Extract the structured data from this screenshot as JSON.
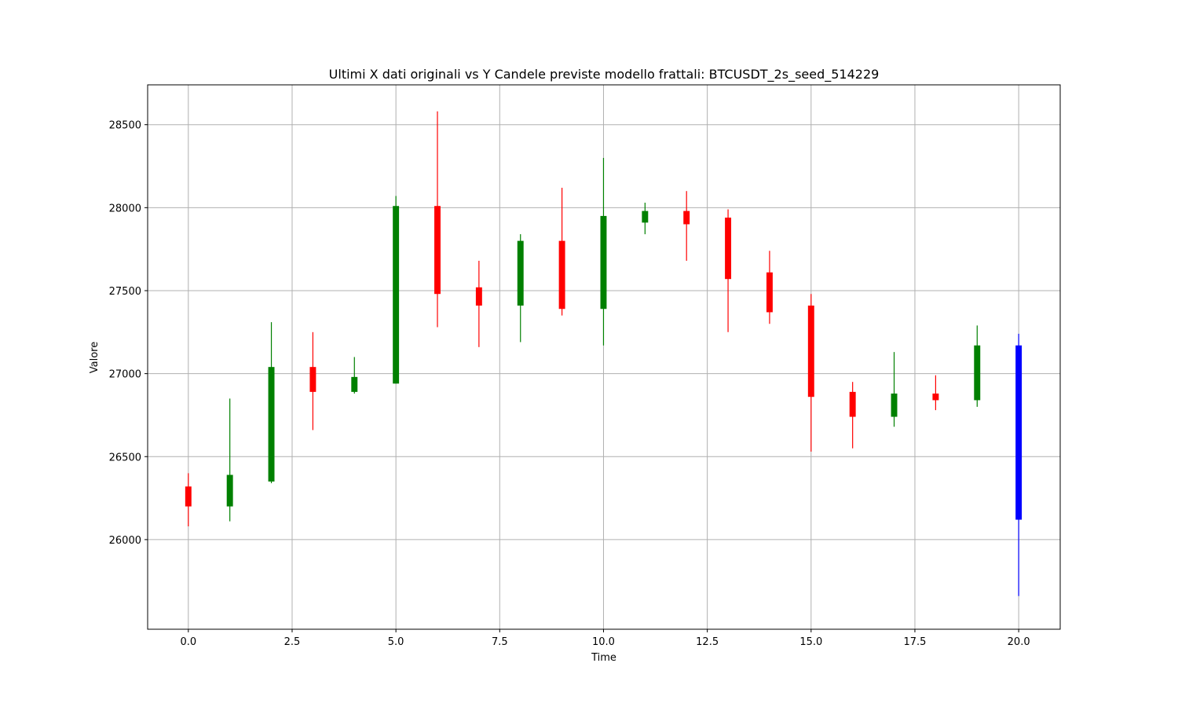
{
  "chart_data": {
    "type": "candlestick",
    "title": "Ultimi X dati originali vs Y Candele previste modello frattali: BTCUSDT_2s_seed_514229",
    "xlabel": "Time",
    "ylabel": "Valore",
    "xlim": [
      -0.98,
      21.0
    ],
    "ylim": [
      25460,
      28740
    ],
    "x_ticks": [
      0.0,
      2.5,
      5.0,
      7.5,
      10.0,
      12.5,
      15.0,
      17.5,
      20.0
    ],
    "x_tick_labels": [
      "0.0",
      "2.5",
      "5.0",
      "7.5",
      "10.0",
      "12.5",
      "15.0",
      "17.5",
      "20.0"
    ],
    "y_ticks": [
      26000,
      26500,
      27000,
      27500,
      28000,
      28500
    ],
    "y_tick_labels": [
      "26000",
      "26500",
      "27000",
      "27500",
      "28000",
      "28500"
    ],
    "grid": true,
    "colors": {
      "up": "#008000",
      "down": "#ff0000",
      "forecast": "#0000ff"
    },
    "candles": [
      {
        "x": 0,
        "open": 26320,
        "high": 26400,
        "low": 26080,
        "close": 26200,
        "color": "red"
      },
      {
        "x": 1,
        "open": 26200,
        "high": 26850,
        "low": 26110,
        "close": 26390,
        "color": "green"
      },
      {
        "x": 2,
        "open": 26350,
        "high": 27310,
        "low": 26340,
        "close": 27040,
        "color": "green"
      },
      {
        "x": 3,
        "open": 27040,
        "high": 27250,
        "low": 26660,
        "close": 26890,
        "color": "red"
      },
      {
        "x": 4,
        "open": 26890,
        "high": 27100,
        "low": 26880,
        "close": 26980,
        "color": "green"
      },
      {
        "x": 5,
        "open": 26940,
        "high": 28070,
        "low": 26940,
        "close": 28010,
        "color": "green"
      },
      {
        "x": 6,
        "open": 28010,
        "high": 28580,
        "low": 27280,
        "close": 27480,
        "color": "red"
      },
      {
        "x": 7,
        "open": 27520,
        "high": 27680,
        "low": 27160,
        "close": 27410,
        "color": "red"
      },
      {
        "x": 8,
        "open": 27410,
        "high": 27840,
        "low": 27190,
        "close": 27800,
        "color": "green"
      },
      {
        "x": 9,
        "open": 27800,
        "high": 28120,
        "low": 27350,
        "close": 27390,
        "color": "red"
      },
      {
        "x": 10,
        "open": 27390,
        "high": 28300,
        "low": 27170,
        "close": 27950,
        "color": "green"
      },
      {
        "x": 11,
        "open": 27910,
        "high": 28030,
        "low": 27840,
        "close": 27980,
        "color": "green"
      },
      {
        "x": 12,
        "open": 27980,
        "high": 28100,
        "low": 27680,
        "close": 27900,
        "color": "red"
      },
      {
        "x": 13,
        "open": 27940,
        "high": 27990,
        "low": 27250,
        "close": 27570,
        "color": "red"
      },
      {
        "x": 14,
        "open": 27610,
        "high": 27740,
        "low": 27300,
        "close": 27370,
        "color": "red"
      },
      {
        "x": 15,
        "open": 27410,
        "high": 27480,
        "low": 26530,
        "close": 26860,
        "color": "red"
      },
      {
        "x": 16,
        "open": 26890,
        "high": 26950,
        "low": 26550,
        "close": 26740,
        "color": "red"
      },
      {
        "x": 17,
        "open": 26740,
        "high": 27130,
        "low": 26680,
        "close": 26880,
        "color": "green"
      },
      {
        "x": 18,
        "open": 26880,
        "high": 26990,
        "low": 26780,
        "close": 26840,
        "color": "red"
      },
      {
        "x": 19,
        "open": 26840,
        "high": 27290,
        "low": 26800,
        "close": 27170,
        "color": "green"
      },
      {
        "x": 20,
        "open": 27170,
        "high": 27240,
        "low": 25660,
        "close": 26120,
        "color": "blue"
      }
    ]
  }
}
